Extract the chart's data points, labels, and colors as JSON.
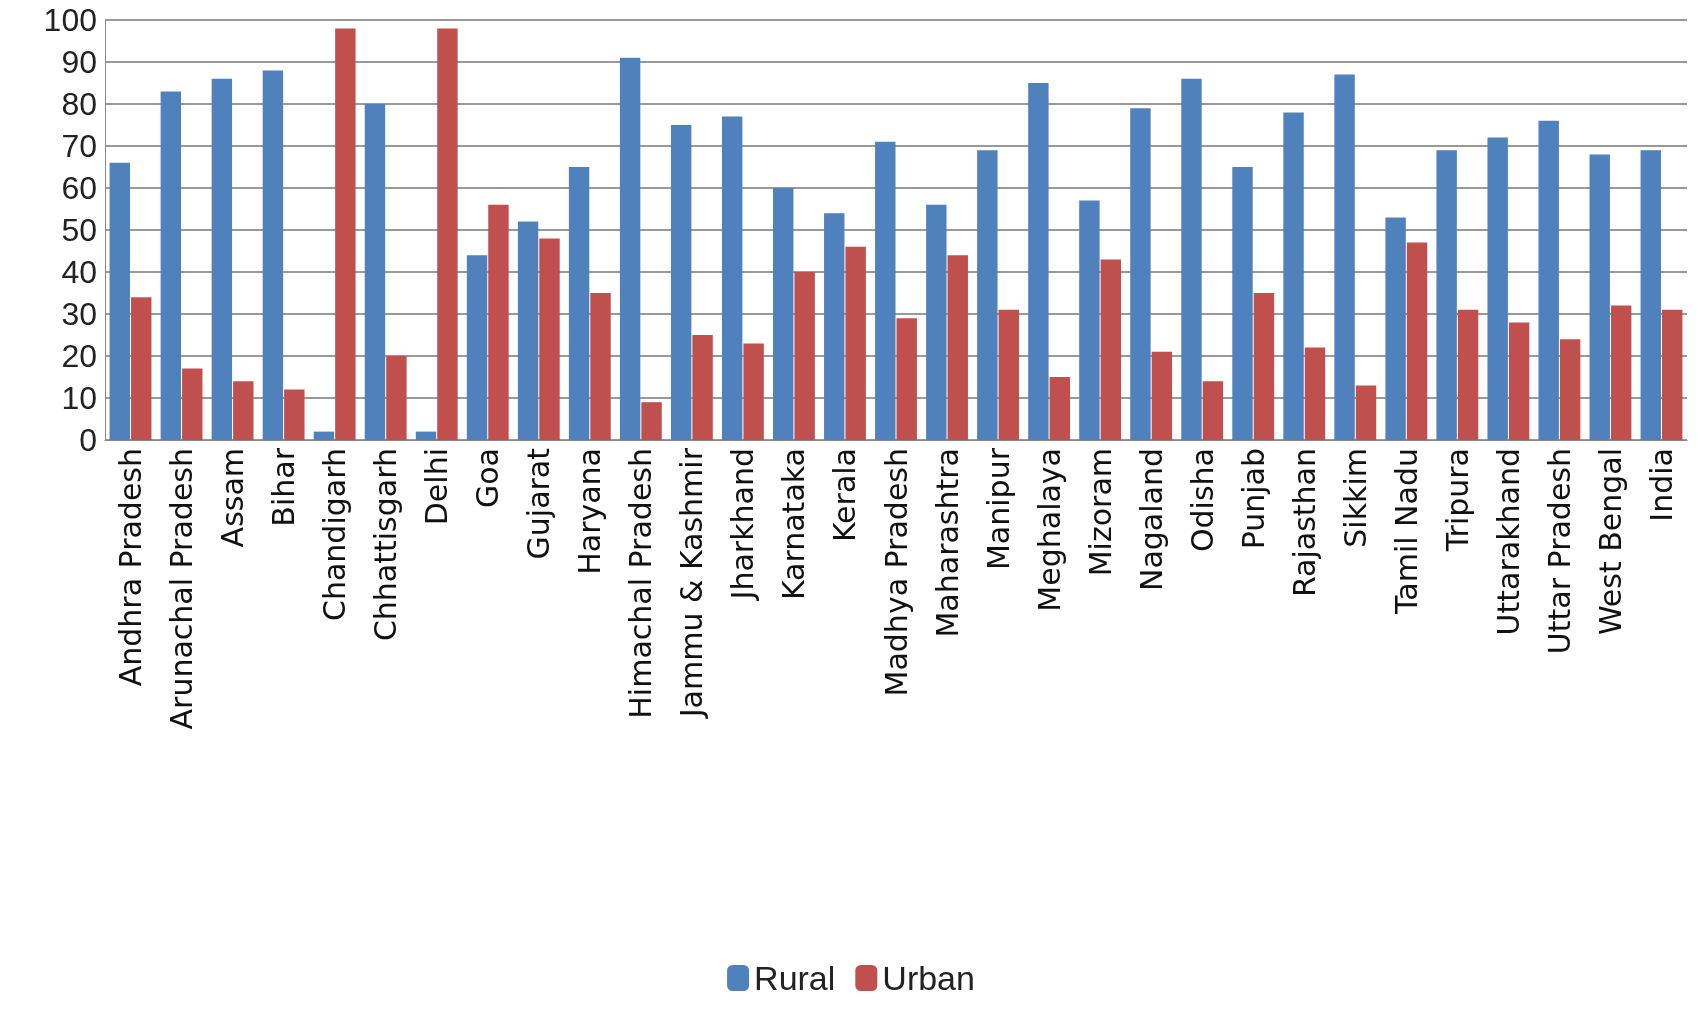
{
  "chart_data": {
    "type": "bar",
    "categories": [
      "Andhra Pradesh",
      "Arunachal Pradesh",
      "Assam",
      "Bihar",
      "Chandigarh",
      "Chhattisgarh",
      "Delhi",
      "Goa",
      "Gujarat",
      "Haryana",
      "Himachal Pradesh",
      "Jammu & Kashmir",
      "Jharkhand",
      "Karnataka",
      "Kerala",
      "Madhya Pradesh",
      "Maharashtra",
      "Manipur",
      "Meghalaya",
      "Mizoram",
      "Nagaland",
      "Odisha",
      "Punjab",
      "Rajasthan",
      "Sikkim",
      "Tamil Nadu",
      "Tripura",
      "Uttarakhand",
      "Uttar Pradesh",
      "West Bengal",
      "India"
    ],
    "series": [
      {
        "name": "Rural",
        "color": "#4f81bd",
        "values": [
          66,
          83,
          86,
          88,
          2,
          80,
          2,
          44,
          52,
          65,
          91,
          75,
          77,
          60,
          54,
          71,
          56,
          69,
          85,
          57,
          79,
          86,
          65,
          78,
          87,
          53,
          69,
          72,
          76,
          68,
          69
        ]
      },
      {
        "name": "Urban",
        "color": "#c0504d",
        "values": [
          34,
          17,
          14,
          12,
          98,
          20,
          98,
          56,
          48,
          35,
          9,
          25,
          23,
          40,
          46,
          29,
          44,
          31,
          15,
          43,
          21,
          14,
          35,
          22,
          13,
          47,
          31,
          28,
          24,
          32,
          31
        ]
      }
    ],
    "ylim": [
      0,
      100
    ],
    "yticks": [
      0,
      10,
      20,
      30,
      40,
      50,
      60,
      70,
      80,
      90,
      100
    ],
    "grid": "y",
    "legend": "bottom"
  }
}
